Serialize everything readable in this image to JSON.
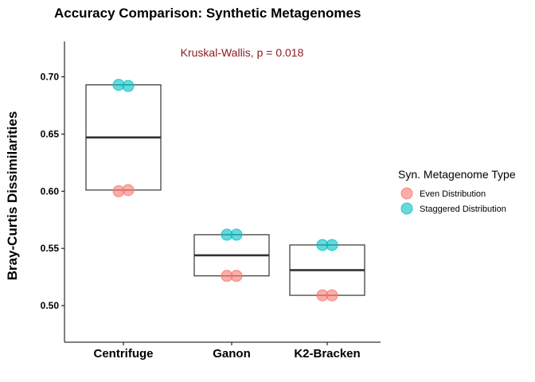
{
  "chart_data": {
    "type": "box",
    "title": "Accuracy Comparison: Synthetic Metagenomes",
    "annotation": "Kruskal-Wallis, p = 0.018",
    "annotation_color": "#8B1A1A",
    "ylabel": "Bray-Curtis Dissimilarities",
    "xlabel": "",
    "ylim": [
      0.468,
      0.731
    ],
    "yticks": [
      0.5,
      0.55,
      0.6,
      0.65,
      0.7
    ],
    "ytick_labels": [
      "0.50",
      "0.55",
      "0.60",
      "0.65",
      "0.70"
    ],
    "categories": [
      "Centrifuge",
      "Ganon",
      "K2-Bracken"
    ],
    "boxes": [
      {
        "category": "Centrifuge",
        "min": 0.601,
        "q1": 0.601,
        "median": 0.647,
        "q3": 0.693,
        "max": 0.693
      },
      {
        "category": "Ganon",
        "min": 0.526,
        "q1": 0.526,
        "median": 0.544,
        "q3": 0.562,
        "max": 0.562
      },
      {
        "category": "K2-Bracken",
        "min": 0.509,
        "q1": 0.509,
        "median": 0.531,
        "q3": 0.553,
        "max": 0.553
      }
    ],
    "legend": {
      "title": "Syn. Metagenome Type",
      "position": "right"
    },
    "series": [
      {
        "name": "Even Distribution",
        "color": "#F8766D",
        "points": [
          {
            "category": "Centrifuge",
            "y": 0.6
          },
          {
            "category": "Centrifuge",
            "y": 0.601
          },
          {
            "category": "Ganon",
            "y": 0.526
          },
          {
            "category": "Ganon",
            "y": 0.526
          },
          {
            "category": "K2-Bracken",
            "y": 0.509
          },
          {
            "category": "K2-Bracken",
            "y": 0.509
          }
        ]
      },
      {
        "name": "Staggered Distribution",
        "color": "#00BFC4",
        "points": [
          {
            "category": "Centrifuge",
            "y": 0.693
          },
          {
            "category": "Centrifuge",
            "y": 0.692
          },
          {
            "category": "Ganon",
            "y": 0.562
          },
          {
            "category": "Ganon",
            "y": 0.562
          },
          {
            "category": "K2-Bracken",
            "y": 0.553
          },
          {
            "category": "K2-Bracken",
            "y": 0.553
          }
        ]
      }
    ],
    "grid": false
  }
}
